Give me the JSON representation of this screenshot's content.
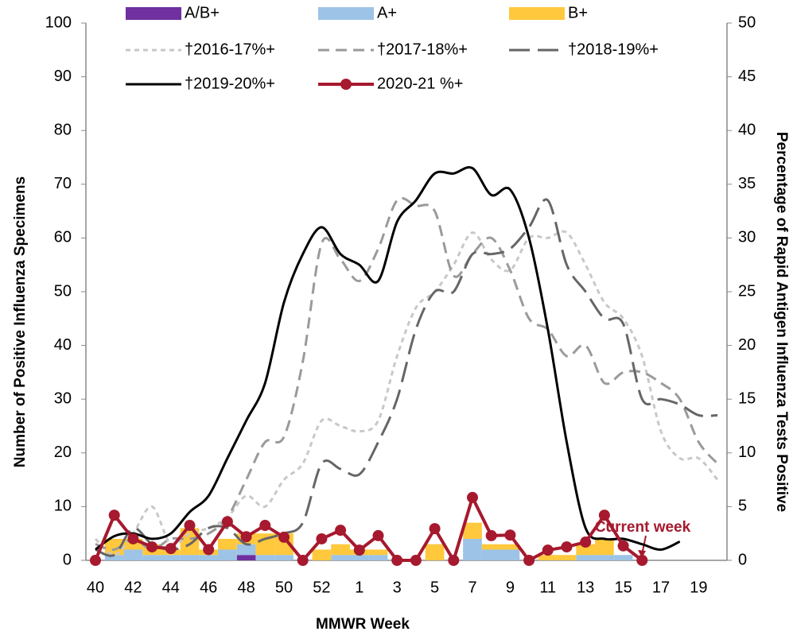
{
  "chart_data": {
    "type": "combo",
    "x_label": "MMWR Week",
    "y_label": "Number of Positive Influenza Specimens",
    "y2_label": "Percentage of Rapid Antigen Influenza Tests Positive",
    "annotation": "Current week",
    "categories": [
      "40",
      null,
      "42",
      null,
      "44",
      null,
      "46",
      null,
      "48",
      null,
      "50",
      null,
      "52",
      null,
      "1",
      null,
      "3",
      null,
      "5",
      null,
      "7",
      null,
      "9",
      null,
      "11",
      null,
      "13",
      null,
      "15",
      null,
      "17",
      null,
      "19",
      null
    ],
    "ylim": [
      0,
      100
    ],
    "yticks": [
      0,
      10,
      20,
      30,
      40,
      50,
      60,
      70,
      80,
      90,
      100
    ],
    "y2lim": [
      0,
      50
    ],
    "y2ticks": [
      0,
      5,
      10,
      15,
      20,
      25,
      30,
      35,
      40,
      45,
      50
    ],
    "series": [
      {
        "name": "A/B+",
        "type": "bar",
        "color": "#7030a0",
        "values": [
          0,
          0,
          0,
          0,
          0,
          0,
          0,
          0,
          1,
          0,
          0,
          0,
          0,
          0,
          0,
          0,
          0,
          0,
          0,
          0,
          0,
          0,
          0,
          0,
          0,
          0,
          0,
          0,
          0,
          0,
          null,
          null,
          null,
          null
        ]
      },
      {
        "name": "A+",
        "type": "bar",
        "color": "#9dc3e6",
        "values": [
          0,
          1,
          2,
          1,
          1,
          1,
          1,
          2,
          2,
          1,
          1,
          0,
          0,
          1,
          1,
          1,
          0,
          0,
          0,
          0,
          4,
          2,
          2,
          0,
          0,
          0,
          1,
          1,
          1,
          0,
          null,
          null,
          null,
          null
        ]
      },
      {
        "name": "B+",
        "type": "bar",
        "color": "#ffc83d",
        "values": [
          0,
          3,
          2,
          2,
          1,
          5,
          1,
          2,
          2,
          4,
          4,
          0,
          2,
          2,
          1,
          1,
          0,
          0,
          3,
          0,
          3,
          1,
          1,
          0,
          1,
          1,
          2,
          3,
          0,
          0,
          null,
          null,
          null,
          null
        ]
      },
      {
        "name": "†2016-17%+",
        "type": "line",
        "axis": "y2",
        "color": "#c8c8c8",
        "dash": "dotted",
        "values": [
          2,
          0.5,
          2.5,
          5,
          1.5,
          2.5,
          3,
          4,
          6,
          5,
          7.5,
          9,
          13,
          12.5,
          12,
          13,
          19,
          23.5,
          25,
          27.5,
          30.5,
          28,
          27,
          30,
          30,
          30.5,
          27.5,
          24,
          22.5,
          19,
          12,
          9.5,
          9.5,
          7.5
        ]
      },
      {
        "name": "†2017-18%+",
        "type": "line",
        "axis": "y2",
        "color": "#9a9a9a",
        "dash": "dashed",
        "values": [
          1.5,
          1,
          2,
          1,
          2,
          2,
          2.5,
          4,
          7.5,
          11,
          11.5,
          18.5,
          29.5,
          28,
          26,
          29,
          33.5,
          33,
          32.5,
          26.5,
          28.5,
          30,
          27,
          22.5,
          21.5,
          19,
          20,
          16.5,
          17.5,
          17.5,
          16.5,
          15,
          11,
          9
        ]
      },
      {
        "name": "†2018-19%+",
        "type": "line",
        "axis": "y2",
        "color": "#666666",
        "dash": "long-dash",
        "values": [
          1,
          0.5,
          3,
          1.5,
          1,
          1.5,
          3,
          3,
          1.5,
          2,
          2.5,
          3.5,
          9,
          8.5,
          8,
          11,
          15,
          21.5,
          25,
          25,
          28.5,
          28.5,
          29,
          31,
          33.5,
          27.5,
          25,
          22.5,
          22,
          15,
          15,
          14.5,
          13.5,
          13.5
        ]
      },
      {
        "name": "†2019-20%+",
        "type": "line",
        "axis": "y2",
        "color": "#000000",
        "dash": "solid",
        "values": [
          1,
          2.25,
          2.5,
          2,
          2.5,
          4.5,
          6,
          9.5,
          13,
          16.5,
          24,
          28.5,
          31,
          28.5,
          27.5,
          26,
          31.5,
          33.5,
          36,
          36,
          36.5,
          34,
          34.5,
          30,
          21.5,
          11,
          3,
          2,
          2,
          1.5,
          1,
          1.75,
          null,
          null
        ]
      },
      {
        "name": "2020-21 %+",
        "type": "line",
        "axis": "y2",
        "color": "#a6192e",
        "dash": "solid",
        "marker": "circle",
        "values": [
          0,
          4.2,
          2,
          1.25,
          1.1,
          3.25,
          1,
          3.6,
          2.2,
          3.25,
          2.15,
          0,
          2,
          2.8,
          0.95,
          2.3,
          0,
          0,
          2.95,
          0,
          5.85,
          2.3,
          2.35,
          0,
          0.95,
          1.25,
          1.7,
          4.2,
          1.35,
          0,
          null,
          null,
          null,
          null
        ]
      }
    ]
  }
}
